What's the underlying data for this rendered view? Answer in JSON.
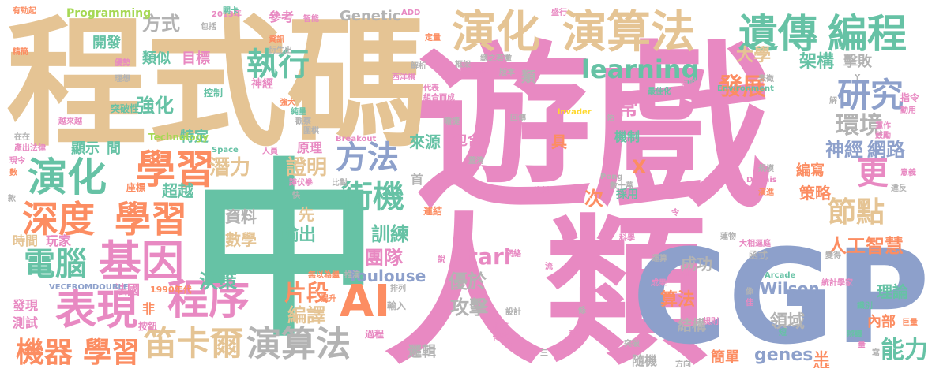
{
  "palette": {
    "pink": "#E889C2",
    "tan": "#E5C494",
    "green": "#66C2A5",
    "orange": "#FC8D62",
    "blue": "#8DA0CB",
    "gray": "#B3B3B3",
    "lime": "#A6D854",
    "yellow": "#FFD92F"
  },
  "words": [
    {
      "text": "遊戲",
      "color": "pink"
    },
    {
      "text": "程式碼",
      "color": "tan"
    },
    {
      "text": "中",
      "color": "green"
    },
    {
      "text": "人類",
      "color": "pink"
    },
    {
      "text": "CGP",
      "color": "blue"
    },
    {
      "text": "演化",
      "color": "tan"
    },
    {
      "text": "演算法",
      "color": "tan"
    },
    {
      "text": "遺傳",
      "color": "green"
    },
    {
      "text": "編程",
      "color": "green"
    },
    {
      "text": "學習",
      "color": "orange"
    },
    {
      "text": "演化",
      "color": "green"
    },
    {
      "text": "深度",
      "color": "orange"
    },
    {
      "text": "學習",
      "color": "orange"
    },
    {
      "text": "基因",
      "color": "pink"
    },
    {
      "text": "表現",
      "color": "pink"
    },
    {
      "text": "電腦",
      "color": "green"
    },
    {
      "text": "機器",
      "color": "orange"
    },
    {
      "text": "學習",
      "color": "orange"
    },
    {
      "text": "笛卡爾",
      "color": "tan"
    },
    {
      "text": "程序",
      "color": "pink"
    },
    {
      "text": "演算法",
      "color": "gray"
    },
    {
      "text": "AI",
      "color": "orange"
    },
    {
      "text": "研究",
      "color": "blue"
    },
    {
      "text": "執行",
      "color": "green"
    },
    {
      "text": "方法",
      "color": "blue"
    },
    {
      "text": "街機",
      "color": "green"
    },
    {
      "text": "learning",
      "color": "green"
    },
    {
      "text": "發展",
      "color": "orange"
    },
    {
      "text": "環境",
      "color": "gray"
    },
    {
      "text": "神經",
      "color": "blue"
    },
    {
      "text": "網路",
      "color": "blue"
    },
    {
      "text": "節點",
      "color": "tan"
    },
    {
      "text": "更",
      "color": "pink"
    },
    {
      "text": "人工智慧",
      "color": "orange"
    },
    {
      "text": "能力",
      "color": "green"
    },
    {
      "text": "Atari",
      "color": "pink"
    },
    {
      "text": "團隊",
      "color": "pink"
    },
    {
      "text": "訓練",
      "color": "green"
    },
    {
      "text": "證明",
      "color": "tan"
    },
    {
      "text": "潛力",
      "color": "tan"
    },
    {
      "text": "強化",
      "color": "green"
    },
    {
      "text": "類似",
      "color": "green"
    },
    {
      "text": "目標",
      "color": "pink"
    },
    {
      "text": "方式",
      "color": "gray"
    },
    {
      "text": "開發",
      "color": "green"
    },
    {
      "text": "Genetic",
      "color": "gray"
    },
    {
      "text": "參考",
      "color": "pink"
    },
    {
      "text": "Programming",
      "color": "lime"
    },
    {
      "text": "大學",
      "color": "tan"
    },
    {
      "text": "架構",
      "color": "green"
    },
    {
      "text": "擊敗",
      "color": "gray"
    },
    {
      "text": "片段",
      "color": "orange"
    },
    {
      "text": "編譯",
      "color": "tan"
    },
    {
      "text": "決策",
      "color": "green"
    },
    {
      "text": "輸出",
      "color": "green"
    },
    {
      "text": "資料",
      "color": "gray"
    },
    {
      "text": "先",
      "color": "tan"
    },
    {
      "text": "數學",
      "color": "tan"
    },
    {
      "text": "超越",
      "color": "green"
    },
    {
      "text": "特定",
      "color": "green"
    },
    {
      "text": "顯示",
      "color": "green"
    },
    {
      "text": "間",
      "color": "green"
    },
    {
      "text": "Toulouse",
      "color": "blue"
    },
    {
      "text": "攻擊",
      "color": "gray"
    },
    {
      "text": "優於",
      "color": "gray"
    },
    {
      "text": "成功",
      "color": "gray"
    },
    {
      "text": "Wilson",
      "color": "blue"
    },
    {
      "text": "算法",
      "color": "orange"
    },
    {
      "text": "領域",
      "color": "gray"
    },
    {
      "text": "genes",
      "color": "blue"
    },
    {
      "text": "半",
      "color": "orange"
    },
    {
      "text": "理論",
      "color": "green"
    },
    {
      "text": "內部",
      "color": "orange"
    },
    {
      "text": "結構",
      "color": "gray"
    },
    {
      "text": "簡單",
      "color": "orange"
    },
    {
      "text": "隨機",
      "color": "gray"
    },
    {
      "text": "邏輯",
      "color": "gray"
    },
    {
      "text": "策略",
      "color": "orange"
    },
    {
      "text": "編寫",
      "color": "orange"
    },
    {
      "text": "次",
      "color": "orange"
    },
    {
      "text": "X",
      "color": "orange"
    },
    {
      "text": "機制",
      "color": "green"
    },
    {
      "text": "常",
      "color": "pink"
    },
    {
      "text": "具",
      "color": "orange"
    },
    {
      "text": "來源",
      "color": "green"
    },
    {
      "text": "包含",
      "color": "pink"
    },
    {
      "text": "首",
      "color": "gray"
    },
    {
      "text": "原理",
      "color": "pink"
    },
    {
      "text": "神經",
      "color": "pink"
    },
    {
      "text": "類",
      "color": "gray"
    },
    {
      "text": "法國",
      "color": "pink"
    },
    {
      "text": "發現",
      "color": "pink"
    },
    {
      "text": "測試",
      "color": "pink"
    },
    {
      "text": "時間",
      "color": "tan"
    },
    {
      "text": "玩家",
      "color": "pink"
    },
    {
      "text": "非",
      "color": "orange"
    },
    {
      "text": "控制",
      "color": "green"
    },
    {
      "text": "突破性",
      "color": "green"
    },
    {
      "text": "座標",
      "color": "orange"
    },
    {
      "text": "按鈕",
      "color": "pink"
    },
    {
      "text": "1990年代",
      "color": "orange"
    },
    {
      "text": "VECFROMDOUBLE",
      "color": "blue"
    },
    {
      "text": "Technology",
      "color": "lime"
    },
    {
      "text": "Breakout",
      "color": "pink"
    },
    {
      "text": "Space",
      "color": "green"
    },
    {
      "text": "Environment",
      "color": "green"
    },
    {
      "text": "Arcade",
      "color": "green"
    },
    {
      "text": "Pong",
      "color": "gray"
    },
    {
      "text": "Dennis",
      "color": "pink"
    },
    {
      "text": "invader",
      "color": "yellow"
    },
    {
      "text": "2013年",
      "color": "pink"
    },
    {
      "text": "ADD",
      "color": "pink"
    },
    {
      "text": "過程",
      "color": "pink"
    },
    {
      "text": "推演",
      "color": "gray"
    },
    {
      "text": "年",
      "color": "pink"
    },
    {
      "text": "方向",
      "color": "gray"
    },
    {
      "text": "突破",
      "color": "gray"
    },
    {
      "text": "ALE",
      "color": "orange"
    },
    {
      "text": "提升",
      "color": "orange"
    },
    {
      "text": "無以為繼",
      "color": "orange"
    },
    {
      "text": "輸入",
      "color": "gray"
    },
    {
      "text": "比對",
      "color": "gray"
    },
    {
      "text": "蹲伏拳",
      "color": "pink"
    },
    {
      "text": "人員",
      "color": "pink"
    },
    {
      "text": "運結",
      "color": "orange"
    },
    {
      "text": "排列",
      "color": "gray"
    },
    {
      "text": "數十萬",
      "color": "gray"
    },
    {
      "text": "採用",
      "color": "green"
    },
    {
      "text": "資料庫",
      "color": "pink"
    },
    {
      "text": "大相逕庭",
      "color": "pink"
    },
    {
      "text": "函式",
      "color": "gray"
    },
    {
      "text": "運算",
      "color": "gray"
    },
    {
      "text": "統計學家",
      "color": "pink"
    },
    {
      "text": "變得",
      "color": "gray"
    },
    {
      "text": "指令",
      "color": "pink"
    },
    {
      "text": "動用",
      "color": "pink"
    },
    {
      "text": "意義",
      "color": "pink"
    },
    {
      "text": "違反",
      "color": "gray"
    },
    {
      "text": "演進",
      "color": "orange"
    },
    {
      "text": "規模",
      "color": "gray"
    },
    {
      "text": "識別",
      "color": "green"
    },
    {
      "text": "巨量",
      "color": "orange"
    },
    {
      "text": "辨識",
      "color": "green"
    },
    {
      "text": "有勁起",
      "color": "orange"
    },
    {
      "text": "精簡",
      "color": "orange"
    },
    {
      "text": "越來越",
      "color": "pink"
    },
    {
      "text": "產出法律",
      "color": "pink"
    },
    {
      "text": "在在",
      "color": "gray"
    },
    {
      "text": "現今",
      "color": "pink"
    },
    {
      "text": "數",
      "color": "orange"
    },
    {
      "text": "款",
      "color": "gray"
    },
    {
      "text": "包括",
      "color": "gray"
    },
    {
      "text": "關卡",
      "color": "green"
    },
    {
      "text": "智能",
      "color": "pink"
    },
    {
      "text": "優勢",
      "color": "pink"
    },
    {
      "text": "理想",
      "color": "gray"
    },
    {
      "text": "強大",
      "color": "orange"
    },
    {
      "text": "代表",
      "color": "pink"
    },
    {
      "text": "組合而成",
      "color": "pink"
    },
    {
      "text": "元素",
      "color": "pink"
    },
    {
      "text": "版本",
      "color": "gray"
    },
    {
      "text": "總之若黴",
      "color": "gray"
    },
    {
      "text": "框架",
      "color": "gray"
    },
    {
      "text": "西洋棋",
      "color": "pink"
    },
    {
      "text": "解析",
      "color": "gray"
    },
    {
      "text": "定量",
      "color": "orange"
    },
    {
      "text": "資訊",
      "color": "orange"
    },
    {
      "text": "衍生出",
      "color": "gray"
    },
    {
      "text": "最佳化",
      "color": "green"
    },
    {
      "text": "看似",
      "color": "pink"
    },
    {
      "text": "表徵",
      "color": "gray"
    },
    {
      "text": "鼓勵",
      "color": "pink"
    },
    {
      "text": "運作",
      "color": "pink"
    },
    {
      "text": "回傳",
      "color": "gray"
    },
    {
      "text": "佑",
      "color": "gray"
    },
    {
      "text": "蓋清",
      "color": "gray"
    },
    {
      "text": "瞻捷",
      "color": "gray"
    },
    {
      "text": "純量",
      "color": "green"
    },
    {
      "text": "圍棋",
      "color": "gray"
    },
    {
      "text": "觀察",
      "color": "gray"
    },
    {
      "text": "說",
      "color": "pink"
    },
    {
      "text": "相較",
      "color": "pink"
    },
    {
      "text": "傳統",
      "color": "pink"
    },
    {
      "text": "設計",
      "color": "gray"
    },
    {
      "text": "規則",
      "color": "pink"
    },
    {
      "text": "短",
      "color": "green"
    },
    {
      "text": "科學",
      "color": "pink"
    },
    {
      "text": "蓮物",
      "color": "gray"
    },
    {
      "text": "人腦",
      "color": "pink"
    },
    {
      "text": "成果",
      "color": "pink"
    },
    {
      "text": "三",
      "color": "gray"
    },
    {
      "text": "快",
      "color": "gray"
    },
    {
      "text": "網絡",
      "color": "pink"
    },
    {
      "text": "盛行",
      "color": "pink"
    },
    {
      "text": "寫",
      "color": "gray"
    },
    {
      "text": "量",
      "color": "pink"
    },
    {
      "text": "佳",
      "color": "pink"
    },
    {
      "text": "解",
      "color": "gray"
    },
    {
      "text": "令",
      "color": "pink"
    },
    {
      "text": "Y",
      "color": "gray"
    },
    {
      "text": "像",
      "color": "gray"
    },
    {
      "text": "套",
      "color": "pink"
    },
    {
      "text": "條",
      "color": "gray"
    },
    {
      "text": "流",
      "color": "pink"
    }
  ]
}
